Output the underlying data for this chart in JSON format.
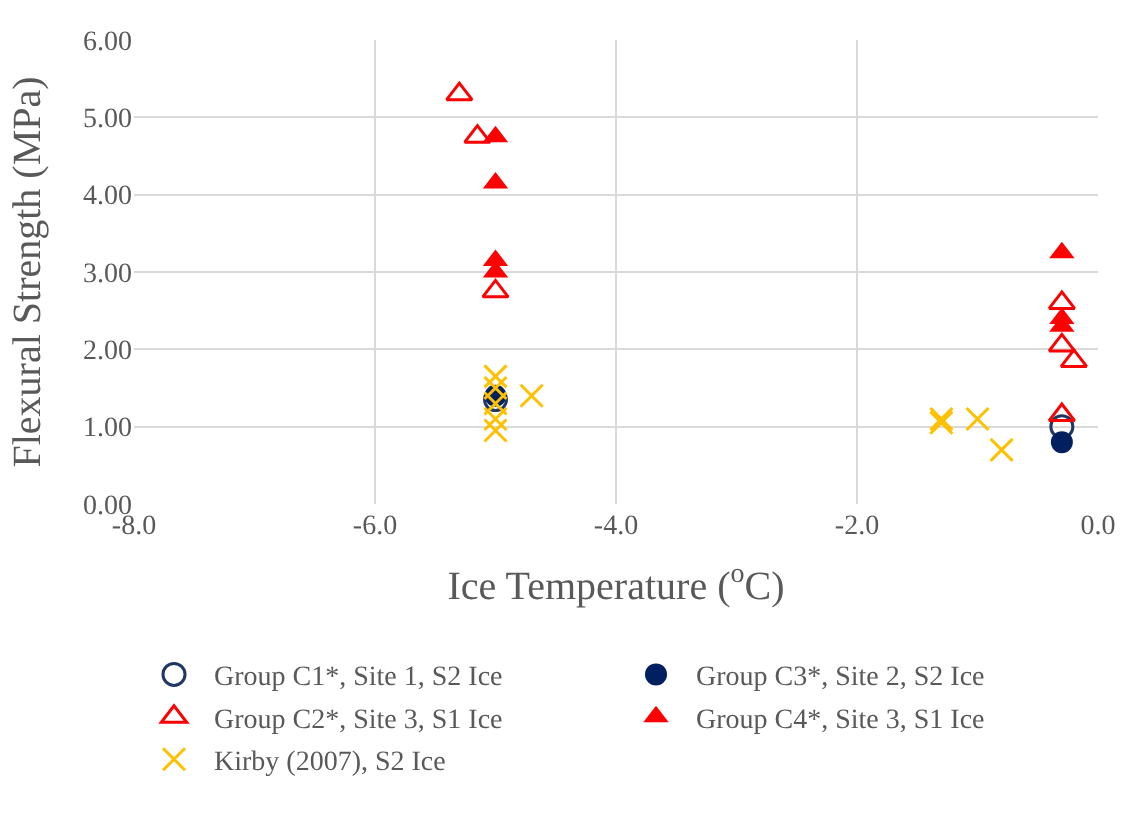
{
  "chart_data": {
    "type": "scatter",
    "xlabel": "Ice Temperature ($^{o}$C)",
    "ylabel": "Flexural Strength (MPa)",
    "xlim": [
      -8,
      0
    ],
    "xticks": [
      {
        "value": -8,
        "label": "-8.0"
      },
      {
        "value": -6,
        "label": "-6.0"
      },
      {
        "value": -4,
        "label": "-4.0"
      },
      {
        "value": -2,
        "label": "-2.0"
      },
      {
        "value": 0,
        "label": "0.0"
      }
    ],
    "ylim": [
      0,
      6
    ],
    "yticks": [
      {
        "value": 0,
        "label": "0.00"
      },
      {
        "value": 1,
        "label": "1.00"
      },
      {
        "value": 2,
        "label": "2.00"
      },
      {
        "value": 3,
        "label": "3.00"
      },
      {
        "value": 4,
        "label": "4.00"
      },
      {
        "value": 5,
        "label": "5.00"
      },
      {
        "value": 6,
        "label": "6.00"
      }
    ],
    "grid": true,
    "legend": "bottom",
    "series": [
      {
        "name": "Group C1*, Site 1, S2 Ice",
        "color": "#1f3864",
        "marker": "circle-open",
        "x": [
          -5.0,
          -0.3
        ],
        "values": [
          1.35,
          1.0
        ]
      },
      {
        "name": "Group C3*, Site 2, S2 Ice",
        "color": "#002060",
        "marker": "circle",
        "x": [
          -5.0,
          -0.3
        ],
        "values": [
          1.4,
          0.8
        ]
      },
      {
        "name": "Group C2*, Site 3, S1 Ice",
        "color": "#ff0000",
        "marker": "triangle-open",
        "x": [
          -5.3,
          -5.15,
          -5.0,
          -0.3,
          -0.3,
          -0.2,
          -0.3
        ],
        "values": [
          5.3,
          4.75,
          2.75,
          2.6,
          2.05,
          1.85,
          1.15
        ]
      },
      {
        "name": "Group C4*, Site 3, S1 Ice",
        "color": "#ff0000",
        "marker": "triangle",
        "x": [
          -5.0,
          -5.0,
          -5.0,
          -5.0,
          -0.3,
          -0.3,
          -0.3
        ],
        "values": [
          4.75,
          4.15,
          3.15,
          3.0,
          3.25,
          2.4,
          2.3
        ]
      },
      {
        "name": "Kirby (2007), S2 Ice",
        "color": "#ffc000",
        "marker": "cross",
        "x": [
          -5.0,
          -5.0,
          -5.0,
          -5.0,
          -5.0,
          -4.7,
          -1.3,
          -1.3,
          -1.0,
          -0.8
        ],
        "values": [
          1.65,
          1.5,
          1.3,
          1.1,
          0.95,
          1.4,
          1.1,
          1.05,
          1.1,
          0.7
        ]
      }
    ]
  }
}
